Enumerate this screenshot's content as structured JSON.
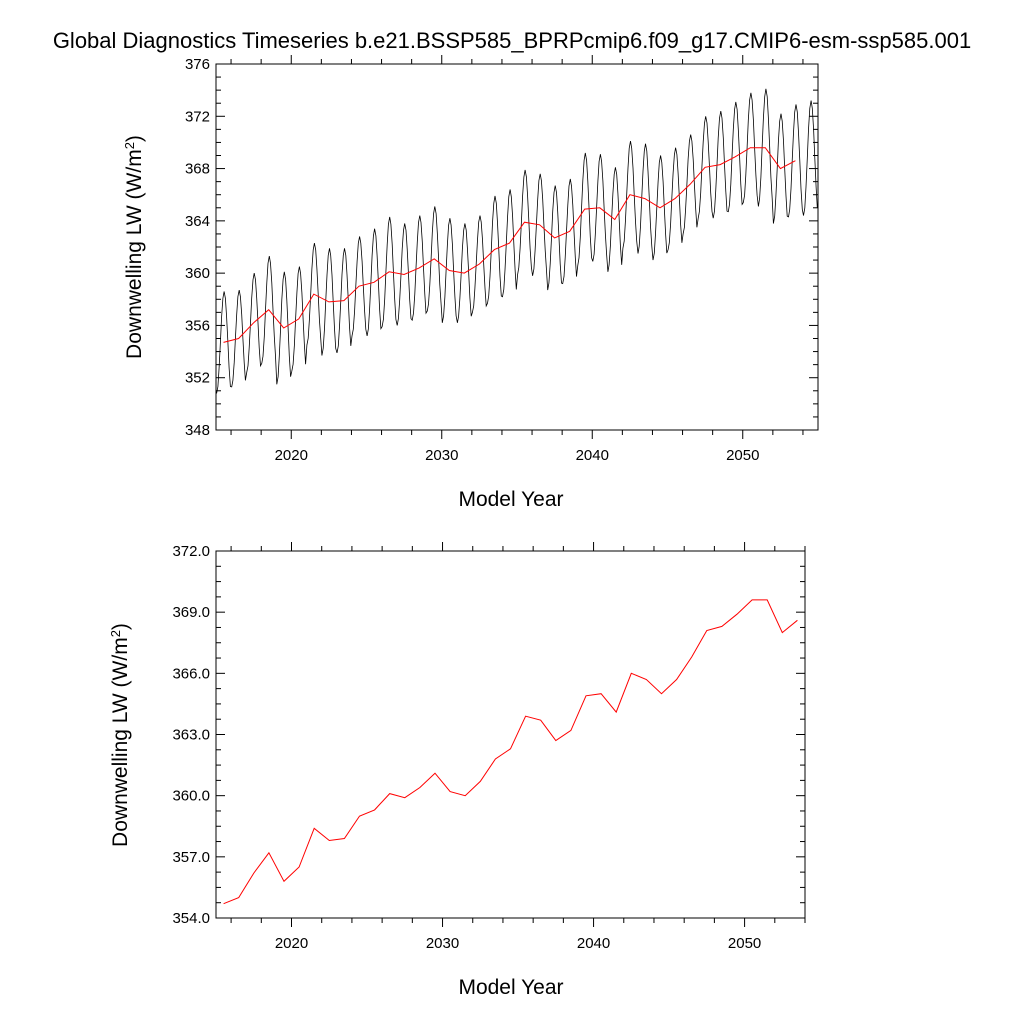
{
  "title": "Global Diagnostics Timeseries b.e21.BSSP585_BPRPcmip6.f09_g17.CMIP6-esm-ssp585.001",
  "colors": {
    "monthly": "#000000",
    "annual": "#ff0000",
    "axes": "#000000"
  },
  "chart_data": [
    {
      "type": "line",
      "xlabel": "Model Year",
      "ylabel": "Downwelling LW (W/m2)",
      "ylabel_main": "Downwelling LW (W/m",
      "ylabel_sup": "2",
      "ylabel_close": ")",
      "xlim": [
        2015.0,
        2055.0
      ],
      "ylim": [
        348,
        376
      ],
      "xticks": [
        2020,
        2030,
        2040,
        2050
      ],
      "xtick_labels": [
        "2020",
        "2030",
        "2040",
        "2050"
      ],
      "yticks": [
        348,
        352,
        356,
        360,
        364,
        368,
        372,
        376
      ],
      "ytick_labels": [
        "348",
        "352",
        "356",
        "360",
        "364",
        "368",
        "372",
        "376"
      ],
      "series": [
        {
          "style": "monthly",
          "x_start": 2015.04,
          "x_step": 0.08333,
          "annual_means": [
            354.7,
            355.0,
            356.2,
            357.2,
            355.8,
            356.5,
            358.4,
            357.8,
            357.9,
            359.0,
            359.3,
            360.1,
            359.9,
            360.4,
            361.1,
            360.2,
            360.0,
            360.7,
            361.8,
            362.3,
            363.9,
            363.7,
            362.7,
            363.2,
            364.9,
            365.0,
            364.1,
            366.0,
            365.7,
            365.0,
            365.7,
            366.8,
            368.1,
            368.3,
            368.9,
            369.6,
            369.6,
            368.0,
            368.6,
            368.8
          ],
          "seasonal_amplitude": [
            3.9,
            3.7,
            3.8,
            4.1,
            4.3,
            4.0,
            3.9,
            4.1,
            4.0,
            3.8,
            4.1,
            4.2,
            3.9,
            4.0,
            4.0,
            4.0,
            3.8,
            3.7,
            4.1,
            4.1,
            4.0,
            3.9,
            4.0,
            4.0,
            4.3,
            4.1,
            4.0,
            4.1,
            4.2,
            4.0,
            3.9,
            3.8,
            3.9,
            4.1,
            4.2,
            4.2,
            4.5,
            4.2,
            4.3,
            4.4
          ],
          "phase_shift_months": 6
        },
        {
          "style": "annual",
          "x": [
            2015.5,
            2016.5,
            2017.5,
            2018.5,
            2019.5,
            2020.5,
            2021.5,
            2022.5,
            2023.5,
            2024.5,
            2025.5,
            2026.5,
            2027.5,
            2028.5,
            2029.5,
            2030.5,
            2031.5,
            2032.5,
            2033.5,
            2034.5,
            2035.5,
            2036.5,
            2037.5,
            2038.5,
            2039.5,
            2040.5,
            2041.5,
            2042.5,
            2043.5,
            2044.5,
            2045.5,
            2046.5,
            2047.5,
            2048.5,
            2049.5,
            2050.5,
            2051.5,
            2052.5,
            2053.5
          ],
          "values": [
            354.7,
            355.0,
            356.2,
            357.2,
            355.8,
            356.5,
            358.4,
            357.8,
            357.9,
            359.0,
            359.3,
            360.1,
            359.9,
            360.4,
            361.1,
            360.2,
            360.0,
            360.7,
            361.8,
            362.3,
            363.9,
            363.7,
            362.7,
            363.2,
            364.9,
            365.0,
            364.1,
            366.0,
            365.7,
            365.0,
            365.7,
            366.8,
            368.1,
            368.3,
            368.9,
            369.6,
            369.6,
            368.0,
            368.6
          ]
        }
      ]
    },
    {
      "type": "line",
      "xlabel": "Model Year",
      "ylabel": "Downwelling LW (W/m2)",
      "ylabel_main": "Downwelling LW (W/m",
      "ylabel_sup": "2",
      "ylabel_close": ")",
      "xlim": [
        2015.0,
        2054.0
      ],
      "ylim": [
        354.0,
        372.0
      ],
      "xticks": [
        2020,
        2030,
        2040,
        2050
      ],
      "xtick_labels": [
        "2020",
        "2030",
        "2040",
        "2050"
      ],
      "yticks": [
        354.0,
        357.0,
        360.0,
        363.0,
        366.0,
        369.0,
        372.0
      ],
      "ytick_labels": [
        "354.0",
        "357.0",
        "360.0",
        "363.0",
        "366.0",
        "369.0",
        "372.0"
      ],
      "series": [
        {
          "style": "annual",
          "x": [
            2015.5,
            2016.5,
            2017.5,
            2018.5,
            2019.5,
            2020.5,
            2021.5,
            2022.5,
            2023.5,
            2024.5,
            2025.5,
            2026.5,
            2027.5,
            2028.5,
            2029.5,
            2030.5,
            2031.5,
            2032.5,
            2033.5,
            2034.5,
            2035.5,
            2036.5,
            2037.5,
            2038.5,
            2039.5,
            2040.5,
            2041.5,
            2042.5,
            2043.5,
            2044.5,
            2045.5,
            2046.5,
            2047.5,
            2048.5,
            2049.5,
            2050.5,
            2051.5,
            2052.5,
            2053.5
          ],
          "values": [
            354.7,
            355.0,
            356.2,
            357.2,
            355.8,
            356.5,
            358.4,
            357.8,
            357.9,
            359.0,
            359.3,
            360.1,
            359.9,
            360.4,
            361.1,
            360.2,
            360.0,
            360.7,
            361.8,
            362.3,
            363.9,
            363.7,
            362.7,
            363.2,
            364.9,
            365.0,
            364.1,
            366.0,
            365.7,
            365.0,
            365.7,
            366.8,
            368.1,
            368.3,
            368.9,
            369.6,
            369.6,
            368.0,
            368.6
          ]
        }
      ]
    }
  ]
}
